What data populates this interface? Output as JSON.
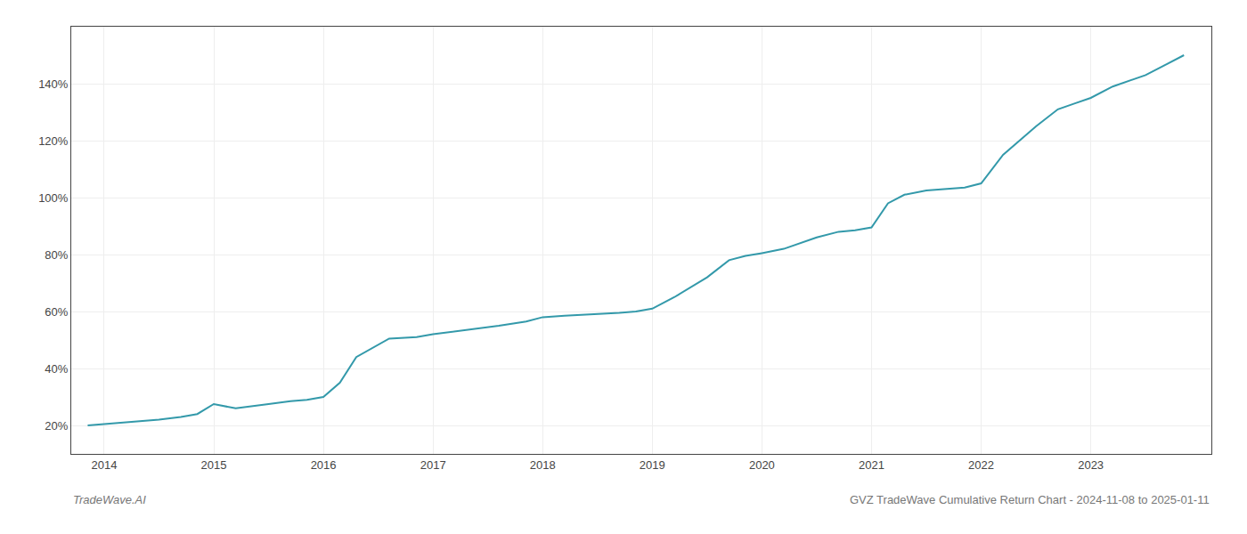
{
  "chart_data": {
    "type": "line",
    "title": "GVZ TradeWave Cumulative Return Chart - 2024-11-08 to 2025-01-11",
    "annotations": [
      "TradeWave.AI"
    ],
    "color": "#3399aa",
    "grid": true,
    "x": [
      2013.85,
      2014.0,
      2014.15,
      2014.3,
      2014.5,
      2014.7,
      2014.85,
      2015.0,
      2015.2,
      2015.5,
      2015.7,
      2015.85,
      2016.0,
      2016.15,
      2016.3,
      2016.6,
      2016.85,
      2017.0,
      2017.3,
      2017.6,
      2017.85,
      2018.0,
      2018.2,
      2018.5,
      2018.7,
      2018.85,
      2019.0,
      2019.2,
      2019.5,
      2019.7,
      2019.85,
      2020.0,
      2020.2,
      2020.5,
      2020.7,
      2020.85,
      2021.0,
      2021.15,
      2021.3,
      2021.5,
      2021.7,
      2021.85,
      2022.0,
      2022.2,
      2022.5,
      2022.7,
      2022.85,
      2023.0,
      2023.2,
      2023.5,
      2023.7,
      2023.85
    ],
    "values": [
      20.0,
      20.5,
      21.0,
      21.5,
      22.0,
      23.0,
      24.0,
      27.5,
      26.0,
      27.5,
      28.5,
      29.0,
      30.0,
      35.0,
      44.0,
      50.5,
      51.0,
      52.0,
      53.5,
      55.0,
      56.5,
      58.0,
      58.5,
      59.0,
      59.5,
      60.0,
      61.0,
      65.0,
      72.0,
      78.0,
      79.5,
      80.5,
      82.0,
      86.0,
      88.0,
      88.5,
      89.5,
      98.0,
      101.0,
      102.5,
      103.0,
      103.5,
      105.0,
      115.0,
      125.0,
      131.0,
      133.0,
      135.0,
      139.0,
      143.0,
      147.0,
      150.0
    ],
    "xlim": [
      2013.7,
      2024.1
    ],
    "xticks": [
      2014,
      2015,
      2016,
      2017,
      2018,
      2019,
      2020,
      2021,
      2022,
      2023
    ],
    "ylim": [
      10,
      160
    ],
    "yticks": [
      {
        "value": 20,
        "label": "20%"
      },
      {
        "value": 40,
        "label": "40%"
      },
      {
        "value": 60,
        "label": "60%"
      },
      {
        "value": 80,
        "label": "80%"
      },
      {
        "value": 100,
        "label": "100%"
      },
      {
        "value": 120,
        "label": "120%"
      },
      {
        "value": 140,
        "label": "140%"
      }
    ]
  }
}
